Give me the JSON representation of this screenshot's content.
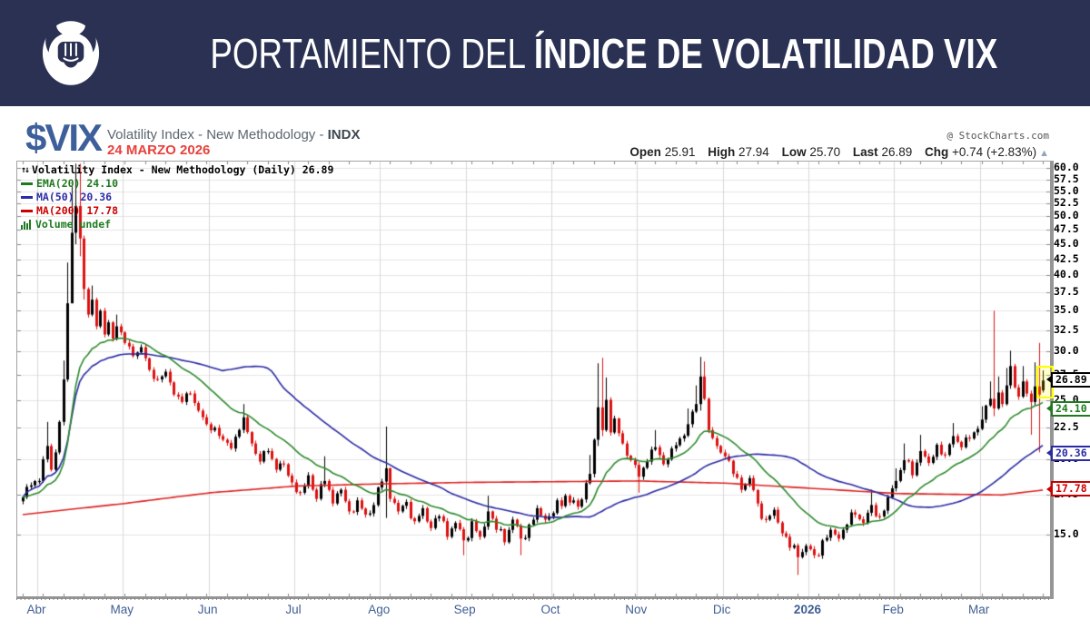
{
  "header": {
    "title_regular": "PORTAMIENTO DEL ",
    "title_bold": "ÍNDICE DE VOLATILIDAD VIX",
    "brand_color": "#2a3153",
    "logo": "bull-fist-icon"
  },
  "symbol_bar": {
    "ticker": "$VIX",
    "name": "Volatility Index - New Methodology - ",
    "exchange": "INDX",
    "date": "24 MARZO 2026",
    "credit": "@ StockCharts.com"
  },
  "quote": {
    "open_label": "Open",
    "open": "25.91",
    "high_label": "High",
    "high": "27.94",
    "low_label": "Low",
    "low": "25.70",
    "last_label": "Last",
    "last": "26.89",
    "chg_label": "Chg",
    "chg": "+0.74 (+2.83%)",
    "arrow": "▲"
  },
  "chart_data": {
    "type": "candlestick",
    "title": "Volatility Index - New Methodology (Daily) 26.89",
    "legend": [
      {
        "label": "EMA(20) 24.10",
        "color": "#1f7a1f"
      },
      {
        "label": "MA(50) 20.36",
        "color": "#2b2ba6"
      },
      {
        "label": "MA(200) 17.78",
        "color": "#cc0000"
      },
      {
        "label": "Volume undef",
        "color": "#1f7a1f"
      }
    ],
    "y_axis": {
      "scale": "log",
      "range": [
        11.9,
        61.5
      ],
      "ticks": [
        60,
        57.5,
        55,
        52.5,
        50,
        47.5,
        45,
        42.5,
        40,
        37.5,
        35,
        32.5,
        30,
        27.5,
        25,
        22.5,
        20,
        17.5,
        15
      ],
      "tick_labels": [
        "60.0",
        "57.5",
        "55.0",
        "52.5",
        "50.0",
        "47.5",
        "45.0",
        "42.5",
        "40.0",
        "37.5",
        "35.0",
        "32.5",
        "30.0",
        "27.5",
        "25.0",
        "22.5",
        "20.0",
        "17.5",
        "15.0"
      ]
    },
    "x_axis": {
      "months": [
        "Abr",
        "May",
        "Jun",
        "Jul",
        "Ago",
        "Sep",
        "Oct",
        "Nov",
        "Dic",
        "2026",
        "Feb",
        "Mar"
      ],
      "bold_month": "2026",
      "month_start_days": [
        4,
        25,
        46,
        67,
        88,
        109,
        130,
        151,
        172,
        193,
        214,
        235
      ],
      "total_days": 251
    },
    "colors": {
      "up": "#000000",
      "down": "#dd1111",
      "ema20": "#2c8a2c",
      "ma50": "#2929a3",
      "ma200": "#dd2222",
      "grid": "#e4e4e4",
      "month_grid": "#d8d8d8",
      "tick": "#888888"
    },
    "last_bar": {
      "open": 25.91,
      "high": 27.94,
      "low": 25.7,
      "close": 26.89
    },
    "callouts": [
      {
        "value": 26.89,
        "text": "26.89",
        "color": "#000000",
        "highlight": true
      },
      {
        "value": 24.1,
        "text": "24.10",
        "color": "#1f7a1f",
        "highlight": false
      },
      {
        "value": 20.36,
        "text": "20.36",
        "color": "#2b2ba6",
        "highlight": false
      },
      {
        "value": 17.78,
        "text": "17.78",
        "color": "#cc0000",
        "highlight": false
      }
    ],
    "close_anchors": [
      [
        0,
        17.3
      ],
      [
        2,
        18.1
      ],
      [
        4,
        18.4
      ],
      [
        6,
        21.0,
        23.0,
        null
      ],
      [
        7,
        19.2
      ],
      [
        8,
        20.5
      ],
      [
        9,
        23.0
      ],
      [
        10,
        27.0,
        29.0,
        null
      ],
      [
        11,
        36.0,
        42.0,
        null
      ],
      [
        12,
        47.0,
        56.0,
        36.0
      ],
      [
        13,
        52.0,
        61.0,
        45.0
      ],
      [
        14,
        46.0,
        61.0,
        43.0
      ],
      [
        15,
        38.0,
        46.5,
        36.5
      ],
      [
        16,
        34.5
      ],
      [
        17,
        36.5,
        38.5,
        null
      ],
      [
        18,
        33.0
      ],
      [
        19,
        35.0
      ],
      [
        20,
        32.0
      ],
      [
        21,
        33.5
      ],
      [
        22,
        31.5
      ],
      [
        23,
        33.0,
        34.5,
        null
      ],
      [
        25,
        31.0
      ],
      [
        27,
        29.5
      ],
      [
        29,
        30.5
      ],
      [
        31,
        28.0
      ],
      [
        33,
        27.0
      ],
      [
        35,
        27.8
      ],
      [
        37,
        25.5
      ],
      [
        39,
        24.8
      ],
      [
        41,
        25.6
      ],
      [
        43,
        24.0
      ],
      [
        45,
        22.8
      ],
      [
        47,
        22.5
      ],
      [
        49,
        21.5
      ],
      [
        51,
        20.8
      ],
      [
        54,
        23.4,
        24.6,
        null
      ],
      [
        56,
        21.2
      ],
      [
        58,
        19.8
      ],
      [
        60,
        20.6
      ],
      [
        62,
        19.2
      ],
      [
        64,
        19.6
      ],
      [
        66,
        18.3
      ],
      [
        68,
        17.6
      ],
      [
        70,
        18.8
      ],
      [
        72,
        17.2
      ],
      [
        74,
        18.4,
        20.2,
        null
      ],
      [
        76,
        16.9
      ],
      [
        78,
        17.8
      ],
      [
        80,
        16.4
      ],
      [
        82,
        17.1
      ],
      [
        84,
        16.2
      ],
      [
        86,
        16.8
      ],
      [
        89,
        19.3,
        22.6,
        16.0
      ],
      [
        90,
        17.2
      ],
      [
        92,
        16.4
      ],
      [
        94,
        17.0
      ],
      [
        96,
        15.8
      ],
      [
        98,
        16.6
      ],
      [
        100,
        15.4
      ],
      [
        102,
        16.1
      ],
      [
        104,
        14.9
      ],
      [
        106,
        15.7
      ],
      [
        108,
        14.7,
        null,
        13.9
      ],
      [
        110,
        15.8
      ],
      [
        112,
        14.9
      ],
      [
        114,
        16.4,
        17.4,
        null
      ],
      [
        116,
        15.3
      ],
      [
        118,
        14.6
      ],
      [
        120,
        15.9
      ],
      [
        122,
        14.8,
        null,
        13.9
      ],
      [
        124,
        15.6
      ],
      [
        126,
        16.6
      ],
      [
        128,
        15.9
      ],
      [
        130,
        16.3
      ],
      [
        133,
        17.4
      ],
      [
        136,
        16.7
      ],
      [
        139,
        18.9,
        20.3,
        null
      ],
      [
        140,
        21.5
      ],
      [
        141,
        24.3,
        28.7,
        21.0
      ],
      [
        142,
        22.3,
        29.3,
        21.8
      ],
      [
        143,
        25.0,
        27.2,
        null
      ],
      [
        144,
        22.1
      ],
      [
        145,
        23.3
      ],
      [
        147,
        21.2
      ],
      [
        149,
        19.9
      ],
      [
        151,
        18.7,
        null,
        17.6
      ],
      [
        153,
        19.8
      ],
      [
        155,
        20.9,
        22.3,
        null
      ],
      [
        157,
        19.6
      ],
      [
        159,
        20.8
      ],
      [
        161,
        21.6
      ],
      [
        163,
        22.8,
        24.2,
        null
      ],
      [
        165,
        24.6,
        26.4,
        null
      ],
      [
        166,
        27.3,
        29.4,
        24.0
      ],
      [
        167,
        25.1,
        28.9,
        null
      ],
      [
        168,
        22.3
      ],
      [
        170,
        21.0
      ],
      [
        172,
        20.2
      ],
      [
        174,
        18.9
      ],
      [
        176,
        17.8
      ],
      [
        178,
        18.6
      ],
      [
        180,
        16.9
      ],
      [
        182,
        15.9
      ],
      [
        184,
        16.5
      ],
      [
        186,
        15.1
      ],
      [
        188,
        14.3
      ],
      [
        190,
        13.8,
        null,
        12.9
      ],
      [
        192,
        14.4
      ],
      [
        194,
        13.9
      ],
      [
        196,
        14.7
      ],
      [
        198,
        15.3
      ],
      [
        200,
        14.8
      ],
      [
        202,
        15.6
      ],
      [
        204,
        16.2
      ],
      [
        206,
        15.7
      ],
      [
        208,
        16.8,
        17.8,
        null
      ],
      [
        210,
        16.1
      ],
      [
        212,
        17.3
      ],
      [
        214,
        18.4,
        19.3,
        null
      ],
      [
        216,
        19.9,
        21.2,
        null
      ],
      [
        218,
        18.8
      ],
      [
        220,
        20.6,
        21.9,
        null
      ],
      [
        222,
        19.7
      ],
      [
        224,
        21.1
      ],
      [
        226,
        20.3
      ],
      [
        228,
        21.8,
        22.9,
        null
      ],
      [
        230,
        20.9
      ],
      [
        232,
        21.6
      ],
      [
        234,
        22.4
      ],
      [
        235,
        23.2,
        24.4,
        null
      ],
      [
        237,
        25.1,
        26.8,
        null
      ],
      [
        238,
        24.2,
        35.0,
        23.5
      ],
      [
        239,
        25.7,
        27.3,
        null
      ],
      [
        240,
        24.6
      ],
      [
        241,
        26.4,
        28.2,
        null
      ],
      [
        242,
        28.4,
        30.1,
        null
      ],
      [
        243,
        26.2
      ],
      [
        244,
        25.3
      ],
      [
        245,
        26.8,
        28.4,
        null
      ],
      [
        246,
        25.6
      ],
      [
        247,
        24.8,
        null,
        21.9
      ],
      [
        248,
        26.3,
        28.8,
        null
      ],
      [
        249,
        25.5,
        31.0,
        20.5
      ],
      [
        250,
        26.89,
        27.94,
        25.7
      ]
    ],
    "ma200_anchors": [
      [
        0,
        16.2
      ],
      [
        25,
        16.9
      ],
      [
        46,
        17.6
      ],
      [
        67,
        18.05
      ],
      [
        88,
        18.2
      ],
      [
        109,
        18.3
      ],
      [
        130,
        18.35
      ],
      [
        151,
        18.4
      ],
      [
        172,
        18.25
      ],
      [
        193,
        17.9
      ],
      [
        214,
        17.55
      ],
      [
        240,
        17.45
      ],
      [
        250,
        17.78
      ]
    ]
  }
}
